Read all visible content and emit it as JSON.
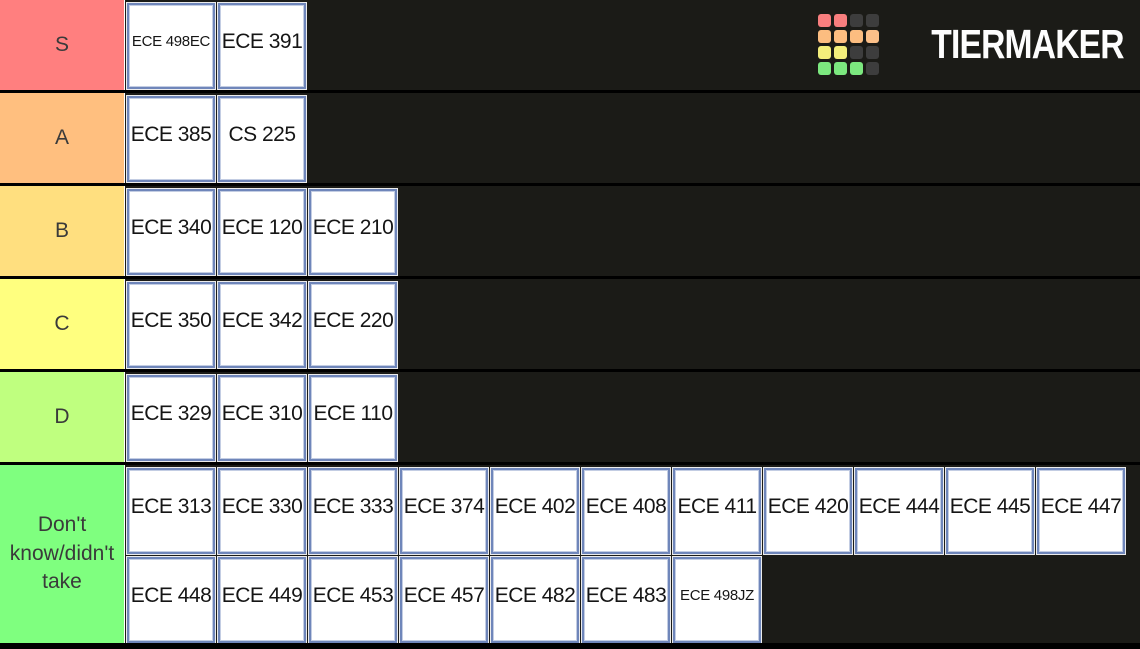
{
  "app": {
    "brand": "TIERMAKER"
  },
  "colors": {
    "row_background": "#1b1b17",
    "divider": "#000000",
    "item_background": "#ffffff",
    "item_border": "#6f86ba",
    "item_text": "#151515",
    "label_text": "#3a3a3a"
  },
  "tiers": [
    {
      "label": "S",
      "color": "#FF7F7F",
      "items": [
        "ECE 498EC",
        "ECE 391"
      ]
    },
    {
      "label": "A",
      "color": "#FFBF7F",
      "items": [
        "ECE 385",
        "CS 225"
      ]
    },
    {
      "label": "B",
      "color": "#FFDF7F",
      "items": [
        "ECE 340",
        "ECE 120",
        "ECE 210"
      ]
    },
    {
      "label": "C",
      "color": "#FFFF7F",
      "items": [
        "ECE 350",
        "ECE 342",
        "ECE 220"
      ]
    },
    {
      "label": "D",
      "color": "#BFFF7F",
      "items": [
        "ECE 329",
        "ECE 310",
        "ECE 110"
      ]
    },
    {
      "label": "Don't\nknow/didn't\ntake",
      "color": "#7FFF7F",
      "items": [
        "ECE 313",
        "ECE 330",
        "ECE 333",
        "ECE 374",
        "ECE 402",
        "ECE 408",
        "ECE 411",
        "ECE 420",
        "ECE 444",
        "ECE 445",
        "ECE 447",
        "ECE 448",
        "ECE 449",
        "ECE 453",
        "ECE 457",
        "ECE 482",
        "ECE 483",
        "ECE 498JZ"
      ]
    }
  ],
  "logo": {
    "text": "TIERMAKER",
    "grid": [
      [
        "#f87e7e",
        "#f87e7e",
        "#3d3d3d",
        "#3d3d3d"
      ],
      [
        "#fcbd80",
        "#fcbd80",
        "#fcbd80",
        "#fcc089"
      ],
      [
        "#f3ee7b",
        "#f3ee7b",
        "#3d3d3d",
        "#3d3d3d"
      ],
      [
        "#7ce87f",
        "#7ce87f",
        "#7ce87f",
        "#3d3d3d"
      ]
    ]
  }
}
